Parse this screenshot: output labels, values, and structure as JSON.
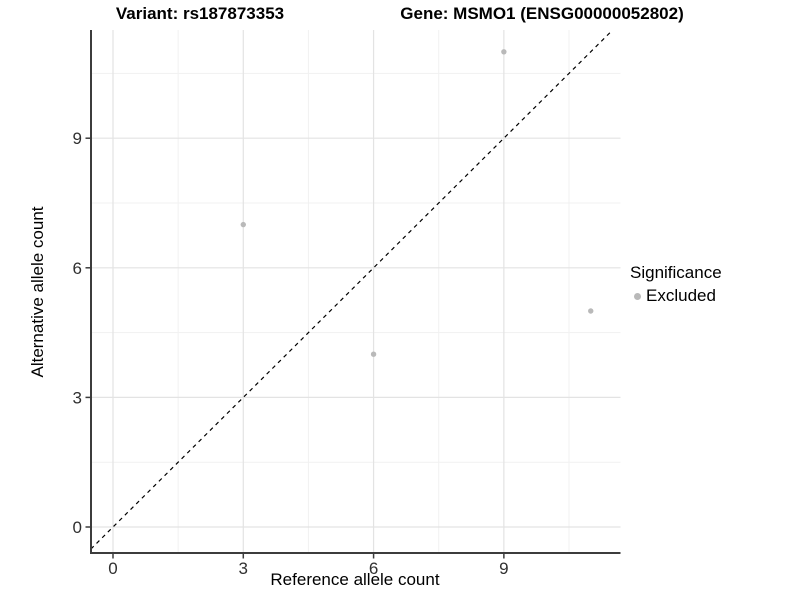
{
  "chart_data": {
    "type": "scatter",
    "title_left": "Variant: rs187873353",
    "title_right": "Gene: MSMO1 (ENSG00000052802)",
    "xlabel": "Reference allele count",
    "ylabel": "Alternative allele count",
    "x_ticks": [
      "0",
      "3",
      "6",
      "9"
    ],
    "y_ticks": [
      "0",
      "3",
      "6",
      "9"
    ],
    "x_tick_values": [
      0,
      3,
      6,
      9
    ],
    "y_tick_values": [
      0,
      3,
      6,
      9
    ],
    "minor_x": [
      1.5,
      4.5,
      7.5,
      10.5
    ],
    "minor_y": [
      1.5,
      4.5,
      7.5,
      10.5
    ],
    "xlim": [
      -0.51,
      11.68
    ],
    "ylim": [
      -0.6,
      11.5
    ],
    "grid": {
      "major": true,
      "minor": true
    },
    "reference_line": {
      "type": "identity y=x",
      "style": "dashed",
      "color": "#000000"
    },
    "series": [
      {
        "name": "Excluded",
        "color": "#b9b9b9",
        "points": [
          {
            "x": 3,
            "y": 7
          },
          {
            "x": 6,
            "y": 4
          },
          {
            "x": 9,
            "y": 11
          },
          {
            "x": 11,
            "y": 5
          }
        ]
      }
    ],
    "legend": {
      "title": "Significance",
      "position": "right",
      "entries": [
        {
          "label": "Excluded",
          "color": "#b9b9b9"
        }
      ]
    }
  },
  "colors": {
    "background": "#ffffff",
    "grid_major": "#e3e3e3",
    "grid_minor": "#f1f1f1",
    "axis_line": "#3c3c3c",
    "tick_label": "#303030",
    "point": "#b9b9b9"
  }
}
